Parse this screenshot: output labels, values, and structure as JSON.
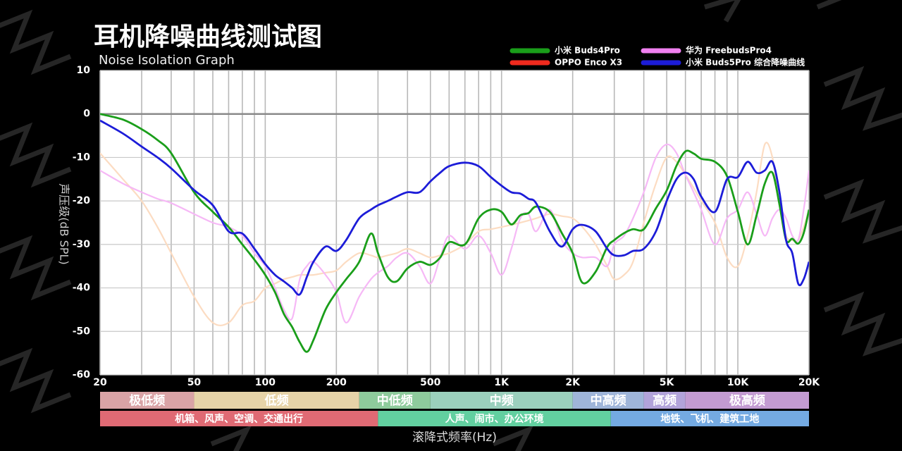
{
  "chart_data": {
    "type": "line",
    "title": "耳机降噪曲线测试图",
    "subtitle": "Noise Isolation Graph",
    "y_label": "声压级(dB SPL)",
    "x_label": "滚降式频率(Hz)",
    "log_x": true,
    "grid": true,
    "legend": "top-right",
    "xlim": [
      20,
      20000
    ],
    "ylim": [
      -60,
      10
    ],
    "xticks": [
      20,
      50,
      100,
      200,
      500,
      {
        "value": 1000,
        "label": "1K"
      },
      {
        "value": 2000,
        "label": "2K"
      },
      {
        "value": 5000,
        "label": "5K"
      },
      {
        "value": 10000,
        "label": "10K"
      },
      {
        "value": 20000,
        "label": "20K"
      }
    ],
    "xgrid": [
      20,
      30,
      40,
      50,
      60,
      70,
      80,
      90,
      100,
      200,
      300,
      400,
      500,
      600,
      700,
      800,
      900,
      1000,
      2000,
      3000,
      4000,
      5000,
      6000,
      7000,
      8000,
      9000,
      10000,
      20000
    ],
    "yticks": [
      10,
      0,
      -10,
      -20,
      -30,
      -40,
      -50,
      -60
    ],
    "x": [
      20,
      25,
      30,
      35,
      40,
      50,
      60,
      70,
      80,
      90,
      100,
      110,
      120,
      130,
      140,
      150,
      160,
      180,
      200,
      220,
      250,
      280,
      300,
      330,
      360,
      400,
      450,
      500,
      550,
      600,
      700,
      800,
      900,
      1000,
      1100,
      1200,
      1300,
      1400,
      1600,
      1800,
      2000,
      2200,
      2500,
      2800,
      3000,
      3300,
      3600,
      4000,
      4500,
      5000,
      5500,
      6000,
      6500,
      7000,
      8000,
      9000,
      10000,
      11000,
      12000,
      13000,
      14000,
      15000,
      16000,
      17000,
      18000,
      19000,
      20000
    ],
    "series": [
      {
        "name": "小米 Buds4Pro",
        "color": "#1a9e1a",
        "values": [
          0,
          -1.3,
          -3.5,
          -6,
          -9,
          -18,
          -22.5,
          -26,
          -30,
          -33.5,
          -37,
          -41,
          -46,
          -49,
          -52.5,
          -54.7,
          -52,
          -45,
          -41,
          -38,
          -34,
          -27.5,
          -32,
          -37.5,
          -38.5,
          -35.5,
          -34,
          -34.7,
          -33,
          -29.5,
          -30,
          -24,
          -22,
          -22.5,
          -25.4,
          -23.3,
          -22.8,
          -21.3,
          -22.5,
          -27.4,
          -32,
          -38.8,
          -36.3,
          -30.6,
          -29,
          -27.4,
          -26.5,
          -26.5,
          -21.7,
          -17.6,
          -11.9,
          -8.6,
          -9.1,
          -10.3,
          -11,
          -14.3,
          -22.5,
          -30,
          -23.3,
          -16,
          -13.5,
          -20.8,
          -29,
          -28.7,
          -29.8,
          -27.4,
          -22
        ]
      },
      {
        "name": "OPPO Enco X3",
        "color": "#f02a1e",
        "line_color": "#fcdcc2",
        "values": [
          -9,
          -15,
          -20,
          -26,
          -32,
          -42,
          -48,
          -48,
          -44,
          -43,
          -40,
          -39,
          -38,
          -37.5,
          -37,
          -37,
          -37,
          -36.5,
          -36,
          -34,
          -32,
          -32.5,
          -33,
          -32.5,
          -32,
          -31,
          -32,
          -33,
          -32.5,
          -32,
          -30,
          -27,
          -26.5,
          -26,
          -25.5,
          -25,
          -24.5,
          -24,
          -23,
          -23.5,
          -24,
          -26,
          -30,
          -35,
          -38,
          -37,
          -34,
          -25,
          -16,
          -10,
          -11,
          -14,
          -17,
          -20,
          -25,
          -33,
          -35,
          -28,
          -18,
          -7,
          -10,
          -21,
          -28,
          -29,
          -29,
          -26,
          -22
        ]
      },
      {
        "name": "华为 FreebudsPro4",
        "color": "#f080f0",
        "line_color": "#f6b8f6",
        "values": [
          -13,
          -16,
          -18,
          -19.5,
          -20.5,
          -23,
          -25,
          -26,
          -28,
          -32,
          -35,
          -40,
          -45,
          -47,
          -38,
          -35,
          -34,
          -37,
          -41,
          -48,
          -42,
          -38,
          -36.5,
          -35,
          -33,
          -32,
          -35,
          -39,
          -33,
          -28,
          -31,
          -28,
          -32,
          -37,
          -31,
          -24,
          -23,
          -27,
          -22,
          -29,
          -32,
          -33,
          -33,
          -35,
          -30,
          -28,
          -24,
          -18,
          -10,
          -7,
          -9,
          -14,
          -18,
          -22,
          -30,
          -24,
          -22,
          -18,
          -23,
          -28,
          -24,
          -22,
          -24,
          -28,
          -29,
          -22,
          -13
        ]
      },
      {
        "name": "小米 Buds5Pro 综合降噪曲线",
        "color": "#1c1cd8",
        "values": [
          -1.5,
          -4.5,
          -7.5,
          -10,
          -12.5,
          -17.5,
          -21,
          -27,
          -27.5,
          -31,
          -34.5,
          -37,
          -38.5,
          -40,
          -41.5,
          -37.5,
          -34,
          -30.5,
          -31.5,
          -29,
          -24,
          -22,
          -21,
          -20,
          -19,
          -18,
          -18,
          -15.5,
          -13.5,
          -12,
          -11.2,
          -12,
          -14.5,
          -16.5,
          -18,
          -18.3,
          -19.5,
          -20.5,
          -27,
          -30.5,
          -26.5,
          -25.5,
          -27,
          -31,
          -32.5,
          -32.5,
          -31.5,
          -31,
          -27,
          -20,
          -15,
          -13.5,
          -15,
          -19,
          -22.5,
          -15,
          -14.5,
          -11,
          -13.5,
          -13,
          -11,
          -18,
          -29,
          -32,
          -39,
          -38,
          -34
        ]
      }
    ],
    "bands": [
      {
        "label": "极低频",
        "from": 20,
        "to": 50,
        "color": "#d9a3a6"
      },
      {
        "label": "低频",
        "from": 50,
        "to": 250,
        "color": "#e6d3a8"
      },
      {
        "label": "中低频",
        "from": 250,
        "to": 500,
        "color": "#8ecb9c"
      },
      {
        "label": "中频",
        "from": 500,
        "to": 2000,
        "color": "#9bd0bd"
      },
      {
        "label": "中高频",
        "from": 2000,
        "to": 4000,
        "color": "#9fb5d9"
      },
      {
        "label": "高频",
        "from": 4000,
        "to": 6000,
        "color": "#b2a3da"
      },
      {
        "label": "极高频",
        "from": 6000,
        "to": 20000,
        "color": "#c39bd2"
      }
    ],
    "zones": [
      {
        "label": "机箱、风声、空调、交通出行",
        "from": 20,
        "to": 300,
        "color": "#e06a74"
      },
      {
        "label": "人声、闹市、办公环境",
        "from": 300,
        "to": 2900,
        "color": "#62d0a0"
      },
      {
        "label": "地铁、飞机、建筑工地",
        "from": 2900,
        "to": 20000,
        "color": "#74aae2"
      }
    ]
  }
}
